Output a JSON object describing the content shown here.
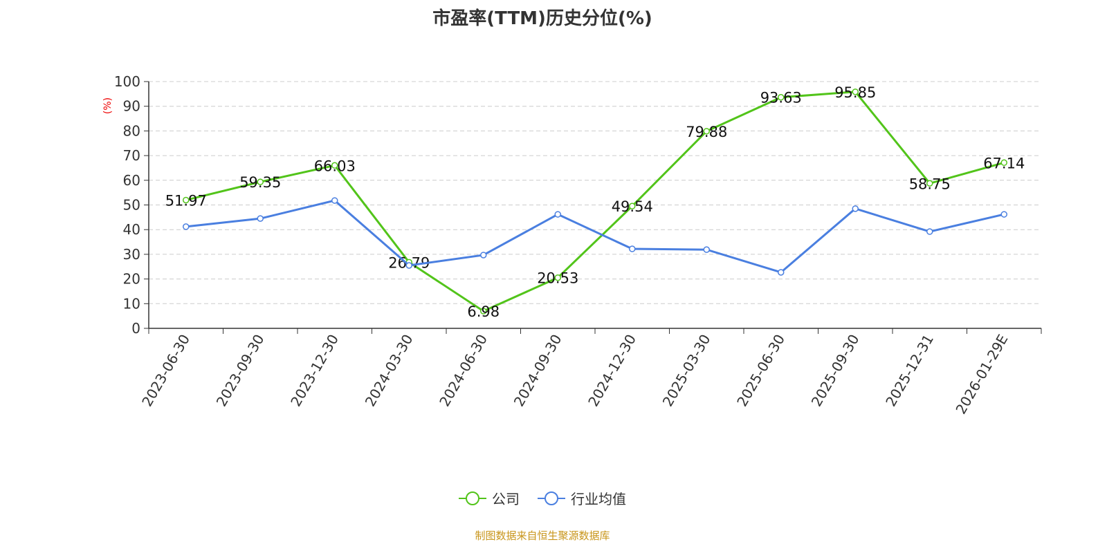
{
  "chart_data": {
    "type": "line",
    "title": "市盈率(TTM)历史分位(%)",
    "ylabel": "(%)",
    "xlabel": "",
    "ylim": [
      0,
      100
    ],
    "yticks": [
      0,
      10,
      20,
      30,
      40,
      50,
      60,
      70,
      80,
      90,
      100
    ],
    "grid": true,
    "legend_position": "bottom",
    "categories": [
      "2023-06-30",
      "2023-09-30",
      "2023-12-30",
      "2024-03-30",
      "2024-06-30",
      "2024-09-30",
      "2024-12-30",
      "2025-03-30",
      "2025-06-30",
      "2025-09-30",
      "2025-12-31",
      "2026-01-29E"
    ],
    "series": [
      {
        "name": "公司",
        "color": "#52c41a",
        "show_labels": true,
        "values": [
          51.97,
          59.35,
          66.03,
          26.79,
          6.98,
          20.53,
          49.54,
          79.88,
          93.63,
          95.85,
          58.75,
          67.14
        ]
      },
      {
        "name": "行业均值",
        "color": "#4a7fe0",
        "show_labels": false,
        "values": [
          41.2,
          44.5,
          51.8,
          25.5,
          29.7,
          46.2,
          32.2,
          31.9,
          22.7,
          48.5,
          39.2,
          46.2
        ]
      }
    ]
  },
  "source": "制图数据来自恒生聚源数据库"
}
